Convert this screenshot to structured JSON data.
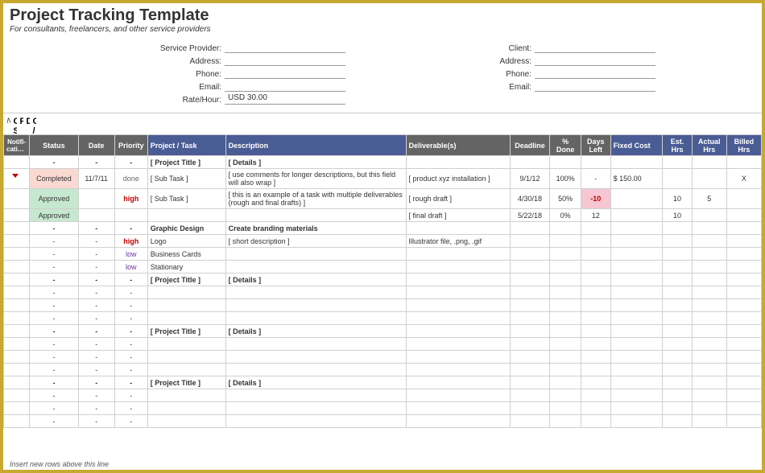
{
  "header": {
    "title": "Project Tracking Template",
    "subtitle": "For consultants, freelancers, and other service providers"
  },
  "provider": {
    "label_sp": "Service Provider:",
    "label_addr": "Address:",
    "label_phone": "Phone:",
    "label_email": "Email:",
    "label_rate": "Rate/Hour:",
    "rate": "USD 30.00"
  },
  "client": {
    "label_client": "Client:",
    "label_addr": "Address:",
    "label_phone": "Phone:",
    "label_email": "Email:"
  },
  "sections": {
    "notifications": "Notifications",
    "current": "Current Status",
    "projects": "Projects",
    "deliverables": "Deliverables",
    "cost": "Cost / Hours"
  },
  "columns": {
    "notif": "Notifi-cations",
    "status": "Status",
    "date": "Date",
    "priority": "Priority",
    "project": "Project / Task",
    "desc": "Description",
    "deliv": "Deliverable(s)",
    "deadline": "Deadline",
    "pdone": "% Done",
    "dleft": "Days Left",
    "fixed": "Fixed Cost",
    "est": "Est. Hrs",
    "act": "Actual Hrs",
    "billed": "Billed Hrs"
  },
  "widths": {
    "notif": 30,
    "status": 56,
    "date": 42,
    "priority": 38,
    "project": 90,
    "desc": 208,
    "deliv": 120,
    "deadline": 46,
    "pdone": 36,
    "dleft": 34,
    "fixed": 60,
    "est": 34,
    "act": 40,
    "billed": 40
  },
  "rows": [
    {
      "bold": true,
      "status": "-",
      "date": "-",
      "priority": "-",
      "project": "[ Project Title ]",
      "desc": "[ Details ]"
    },
    {
      "notif_marker": true,
      "status": "Completed",
      "status_class": "status-completed",
      "date": "11/7/11",
      "priority": "done",
      "pri_class": "pri-done",
      "project": "[ Sub Task ]",
      "desc": "[ use comments for longer descriptions, but this field will also wrap ]",
      "wrap": true,
      "deliv": "[ product xyz installation ]",
      "deadline": "9/1/12",
      "pdone": "100%",
      "dleft": "-",
      "fixed": "$      150.00",
      "billed": "X"
    },
    {
      "status": "Approved",
      "status_class": "status-approved",
      "priority": "high",
      "pri_class": "pri-high",
      "project": "[ Sub Task ]",
      "desc": "[ this is an example of a task with multiple deliverables (rough and final drafts) ]",
      "wrap": true,
      "deliv": "[ rough draft ]",
      "deadline": "4/30/18",
      "pdone": "50%",
      "dleft": "-10",
      "dleft_class": "days-neg",
      "est": "10",
      "act": "5"
    },
    {
      "status": "Approved",
      "status_class": "status-approved",
      "deliv": "[ final draft ]",
      "deadline": "5/22/18",
      "pdone": "0%",
      "dleft": "12",
      "est": "10"
    },
    {
      "bold": true,
      "status": "-",
      "date": "-",
      "priority": "-",
      "project": "Graphic Design",
      "desc": "Create branding materials"
    },
    {
      "status": "-",
      "date": "-",
      "priority": "high",
      "pri_class": "pri-high",
      "project": "Logo",
      "desc": "[ short description ]",
      "deliv": "Illustrator file, .png, .gif"
    },
    {
      "status": "-",
      "date": "-",
      "priority": "low",
      "pri_class": "pri-low",
      "project": "Business Cards"
    },
    {
      "status": "-",
      "date": "-",
      "priority": "low",
      "pri_class": "pri-low",
      "project": "Stationary"
    },
    {
      "bold": true,
      "status": "-",
      "date": "-",
      "priority": "-",
      "project": "[ Project Title ]",
      "desc": "[ Details ]"
    },
    {
      "status": "-",
      "date": "-",
      "priority": "-"
    },
    {
      "status": "-",
      "date": "-",
      "priority": "-"
    },
    {
      "status": "-",
      "date": "-",
      "priority": "-"
    },
    {
      "bold": true,
      "status": "-",
      "date": "-",
      "priority": "-",
      "project": "[ Project Title ]",
      "desc": "[ Details ]"
    },
    {
      "status": "-",
      "date": "-",
      "priority": "-"
    },
    {
      "status": "-",
      "date": "-",
      "priority": "-"
    },
    {
      "status": "-",
      "date": "-",
      "priority": "-"
    },
    {
      "bold": true,
      "status": "-",
      "date": "-",
      "priority": "-",
      "project": "[ Project Title ]",
      "desc": "[ Details ]"
    },
    {
      "status": "-",
      "date": "-",
      "priority": "-"
    },
    {
      "status": "-",
      "date": "-",
      "priority": "-"
    },
    {
      "status": "-",
      "date": "-",
      "priority": "-"
    }
  ],
  "footer": "Insert new rows above this line",
  "colors": {
    "gray_header": "#646464",
    "blue_header": "#4a5c94",
    "border": "#c7a92f"
  }
}
